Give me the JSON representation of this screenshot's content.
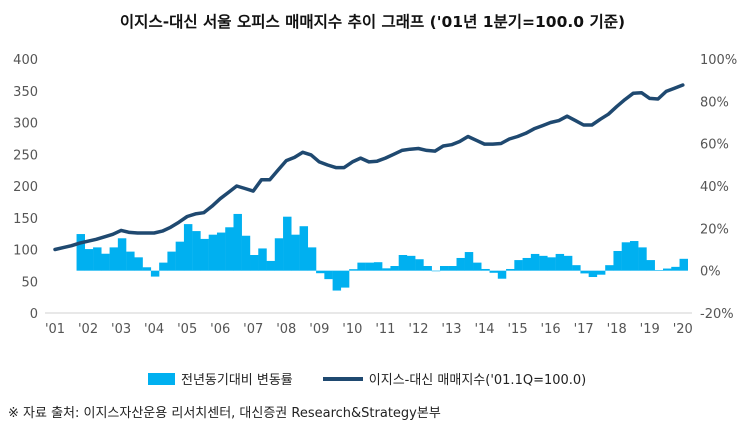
{
  "title": "이지스-대신 서울 오피스 매매지수 추이 그래프 ('01년 1분기=100.0 기준)",
  "legend": {
    "bar_label": "전년동기대비 변동률",
    "line_label": "이지스-대신 매매지수('01.1Q=100.0)"
  },
  "source": "※ 자료 출처: 이지스자산운용 리서치센터, 대신증권 Research&Strategy본부",
  "chart_data": {
    "type": "bar+line",
    "title": "이지스-대신 서울 오피스 매매지수 추이 그래프 ('01년 1분기=100.0 기준)",
    "x_tick_labels": [
      "'01",
      "'02",
      "'03",
      "'04",
      "'05",
      "'06",
      "'07",
      "'08",
      "'09",
      "'10",
      "'11",
      "'12",
      "'13",
      "'14",
      "'15",
      "'16",
      "'17",
      "'18",
      "'19",
      "'20"
    ],
    "x_period": "quarterly, 2001Q1 to 2020Q1",
    "y_left": {
      "ylim": [
        0,
        400
      ],
      "ticks": [
        "0",
        "50",
        "100",
        "150",
        "200",
        "250",
        "300",
        "350",
        "400"
      ]
    },
    "y_right": {
      "ylim": [
        -20,
        100
      ],
      "ticks": [
        "-20%",
        "0%",
        "20%",
        "40%",
        "60%",
        "80%",
        "100%"
      ]
    },
    "grid": false,
    "legend_position": "bottom",
    "colors": {
      "bar": "#00B0F0",
      "line": "#1F4970"
    },
    "series": [
      {
        "name": "전년동기대비 변동률",
        "type": "bar",
        "axis": "right",
        "unit": "%",
        "values": [
          null,
          null,
          null,
          17.3,
          10.2,
          11,
          8,
          11,
          15.3,
          9,
          6.3,
          1.6,
          -2.8,
          3.8,
          9,
          13.7,
          22,
          18.7,
          15,
          17,
          18,
          20.5,
          26.8,
          16.5,
          7.4,
          10.5,
          4.6,
          15.3,
          25.5,
          17,
          21,
          11,
          -1.2,
          -4,
          -9.4,
          -8,
          0.7,
          3.8,
          3.8,
          4,
          1.1,
          2.2,
          7.4,
          7,
          5.4,
          2.2,
          -0.2,
          2.2,
          2.2,
          6,
          8.8,
          3.8,
          0.8,
          -1,
          -3.8,
          0.8,
          5,
          6,
          7.9,
          7,
          6.3,
          7.9,
          7,
          2.6,
          -1.3,
          -3,
          -1.9,
          2.6,
          9.3,
          13.4,
          14,
          11,
          5,
          0.3,
          1,
          1.8,
          5.6
        ]
      },
      {
        "name": "이지스-대신 매매지수('01.1Q=100.0)",
        "type": "line",
        "axis": "left",
        "values": [
          100,
          103,
          106,
          110,
          113,
          116,
          120,
          124,
          130,
          127,
          126,
          126,
          126,
          129,
          135,
          143,
          152,
          156,
          158,
          168,
          180,
          190,
          200,
          196,
          192,
          210,
          210,
          225,
          240,
          245,
          253,
          249,
          238,
          233,
          229,
          229,
          238,
          244,
          238,
          239,
          244,
          250,
          256,
          258,
          259,
          256,
          255,
          263,
          265,
          270,
          278,
          272,
          266,
          266,
          267,
          274,
          278,
          283,
          290,
          295,
          300,
          303,
          310,
          303,
          296,
          296,
          305,
          313,
          325,
          336,
          346,
          347,
          338,
          337,
          349,
          354,
          359
        ]
      }
    ]
  }
}
